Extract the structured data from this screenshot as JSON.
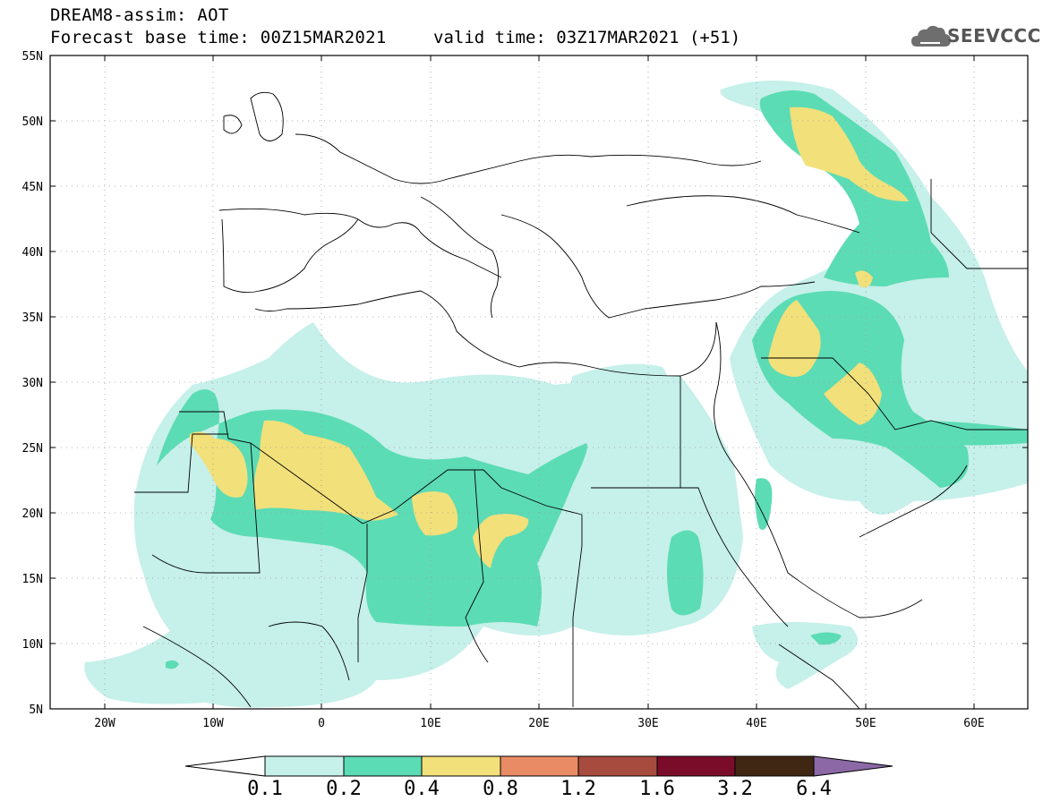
{
  "header": {
    "title": "DREAM8-assim: AOT",
    "base_time": "Forecast base time: 00Z15MAR2021",
    "valid_time": "valid time: 03Z17MAR2021 (+51)"
  },
  "logo": {
    "text": "SEEVCCC",
    "icon": "cloud-icon"
  },
  "map": {
    "lon_range": [
      -25,
      65
    ],
    "lat_range": [
      5,
      55
    ],
    "lon_ticks": [
      "20W",
      "10W",
      "0",
      "10E",
      "20E",
      "30E",
      "40E",
      "50E",
      "60E"
    ],
    "lat_ticks": [
      "55N",
      "50N",
      "45N",
      "40N",
      "35N",
      "30N",
      "25N",
      "20N",
      "15N",
      "10N",
      "5N"
    ],
    "grid": "dotted"
  },
  "colorbar": {
    "labels": [
      "0.1",
      "0.2",
      "0.4",
      "0.8",
      "1.2",
      "1.6",
      "3.2",
      "6.4"
    ],
    "colors": [
      "#c6f0ea",
      "#5cdcb4",
      "#f2e07a",
      "#e98c66",
      "#a84b3f",
      "#7a0c2a",
      "#3f2714",
      "#8c68a6"
    ]
  }
}
